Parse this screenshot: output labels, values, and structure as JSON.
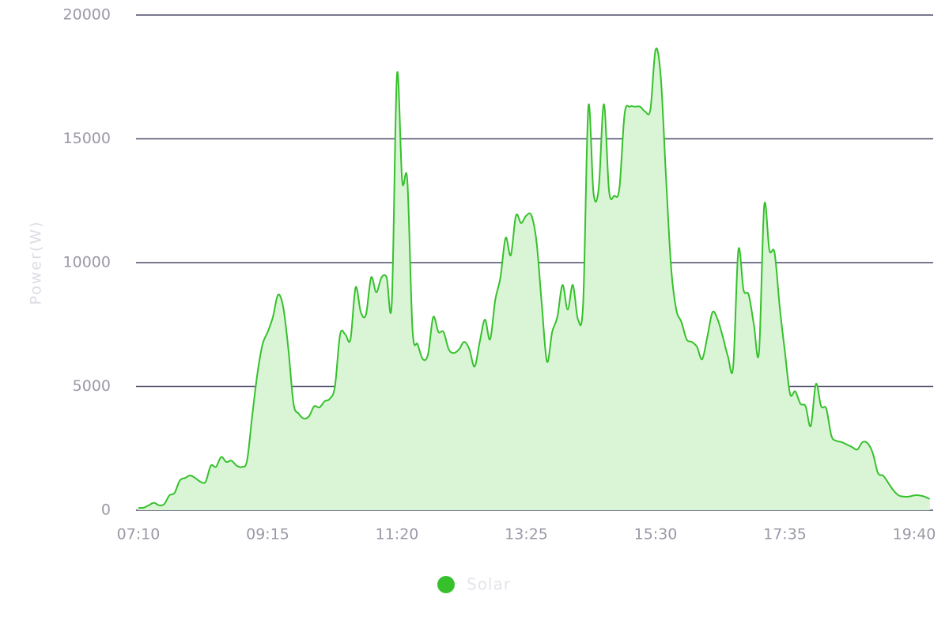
{
  "chart_data": {
    "type": "area",
    "y_label": "Power(W)",
    "categories": [
      "07:10",
      null,
      null,
      null,
      null,
      null,
      null,
      null,
      null,
      null,
      null,
      null,
      null,
      null,
      null,
      null,
      null,
      null,
      null,
      null,
      null,
      null,
      null,
      null,
      null,
      "09:15",
      null,
      null,
      null,
      null,
      null,
      null,
      null,
      null,
      null,
      null,
      null,
      null,
      null,
      null,
      null,
      null,
      null,
      null,
      null,
      null,
      null,
      null,
      null,
      null,
      "11:20",
      null,
      null,
      null,
      null,
      null,
      null,
      null,
      null,
      null,
      null,
      null,
      null,
      null,
      null,
      null,
      null,
      null,
      null,
      null,
      null,
      null,
      null,
      null,
      null,
      "13:25",
      null,
      null,
      null,
      null,
      null,
      null,
      null,
      null,
      null,
      null,
      null,
      null,
      null,
      null,
      null,
      null,
      null,
      null,
      null,
      null,
      null,
      null,
      null,
      null,
      "15:30",
      null,
      null,
      null,
      null,
      null,
      null,
      null,
      null,
      null,
      null,
      null,
      null,
      null,
      null,
      null,
      null,
      null,
      null,
      null,
      null,
      null,
      null,
      null,
      null,
      "17:35",
      null,
      null,
      null,
      null,
      null,
      null,
      null,
      null,
      null,
      null,
      null,
      null,
      null,
      null,
      null,
      null,
      null,
      null,
      null,
      null,
      null,
      null,
      null,
      null,
      "19:40",
      null,
      null,
      null
    ],
    "series": [
      {
        "name": "Solar",
        "color": "#36c12c",
        "fill": "#d9f5d6",
        "values": [
          100,
          100,
          200,
          300,
          200,
          250,
          600,
          700,
          1200,
          1300,
          1400,
          1300,
          1150,
          1150,
          1800,
          1750,
          2150,
          1950,
          2000,
          1800,
          1750,
          2000,
          3800,
          5500,
          6700,
          7200,
          7800,
          8700,
          8200,
          6500,
          4300,
          3900,
          3700,
          3800,
          4200,
          4150,
          4400,
          4500,
          5000,
          7100,
          7100,
          6900,
          9000,
          8000,
          7900,
          9400,
          8800,
          9400,
          9400,
          8400,
          17600,
          13300,
          13300,
          7300,
          6700,
          6100,
          6300,
          7800,
          7200,
          7200,
          6500,
          6350,
          6500,
          6800,
          6500,
          5800,
          6800,
          7700,
          6900,
          8500,
          9400,
          11000,
          10300,
          11900,
          11600,
          11900,
          11900,
          10800,
          8300,
          6000,
          7200,
          7800,
          9100,
          8100,
          9100,
          7700,
          8400,
          16300,
          12800,
          13000,
          16400,
          12900,
          12700,
          13000,
          16000,
          16300,
          16300,
          16300,
          16100,
          16200,
          18600,
          17500,
          13500,
          9800,
          8100,
          7600,
          6900,
          6800,
          6600,
          6100,
          7000,
          8000,
          7700,
          7000,
          6200,
          5800,
          10500,
          8900,
          8700,
          7500,
          6400,
          12300,
          10500,
          10400,
          8200,
          6400,
          4700,
          4800,
          4300,
          4200,
          3400,
          5100,
          4200,
          4100,
          3000,
          2800,
          2750,
          2650,
          2550,
          2450,
          2750,
          2700,
          2300,
          1500,
          1400,
          1100,
          800,
          600,
          550,
          550,
          600,
          600,
          550,
          450
        ]
      }
    ],
    "ylim": [
      0,
      20000
    ],
    "yticks": [
      0,
      5000,
      10000,
      15000,
      20000
    ],
    "grid": true,
    "legend": "bottom"
  }
}
